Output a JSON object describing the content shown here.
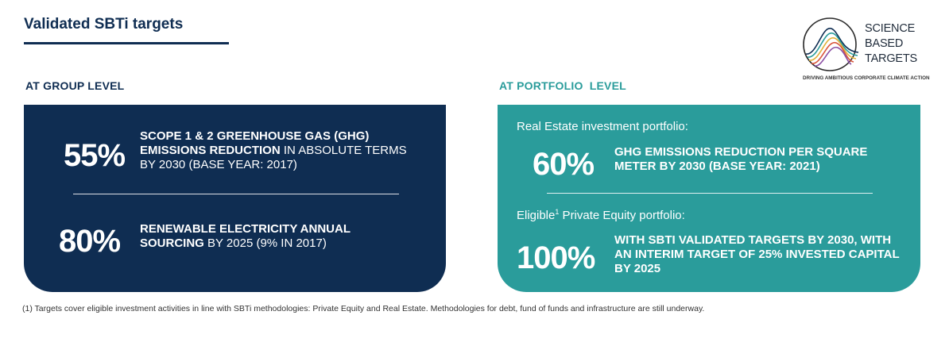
{
  "title": "Validated SBTi targets",
  "logo": {
    "line1": "SCIENCE",
    "line2": "BASED",
    "line3": "TARGETS",
    "tagline": "DRIVING AMBITIOUS CORPORATE CLIMATE ACTION",
    "colors": [
      "#0f2d52",
      "#2a9c9b",
      "#e2b23a",
      "#d9553b",
      "#8a4ea3"
    ]
  },
  "group": {
    "label": "AT GROUP LEVEL",
    "target1": {
      "value": "55%",
      "bold": "SCOPE 1 & 2 GREENHOUSE GAS (GHG) EMISSIONS REDUCTION",
      "rest": " IN ABSOLUTE TERMS BY 2030 (BASE YEAR: 2017)"
    },
    "target2": {
      "value": "80%",
      "bold": "RENEWABLE ELECTRICITY ANNUAL SOURCING",
      "rest": " BY 2025 (9% IN 2017)"
    }
  },
  "portfolio": {
    "label": "AT PORTFOLIO  LEVEL",
    "real_estate": {
      "label": "Real Estate investment portfolio:",
      "value": "60%",
      "desc": "GHG EMISSIONS REDUCTION PER SQUARE METER BY 2030 (BASE YEAR: 2021)"
    },
    "private_equity": {
      "label_pre": "Eligible",
      "label_sup": "1",
      "label_post": " Private Equity portfolio:",
      "value": "100%",
      "desc": "WITH SBTi VALIDATED TARGETS BY 2030, WITH AN INTERIM TARGET OF 25% INVESTED CAPITAL BY 2025"
    }
  },
  "colors": {
    "navy": "#0f2d52",
    "teal": "#2a9c9b"
  },
  "footnote": "(1) Targets cover eligible investment activities in line with SBTi methodologies: Private Equity and Real Estate. Methodologies for debt, fund of funds and infrastructure are still underway."
}
